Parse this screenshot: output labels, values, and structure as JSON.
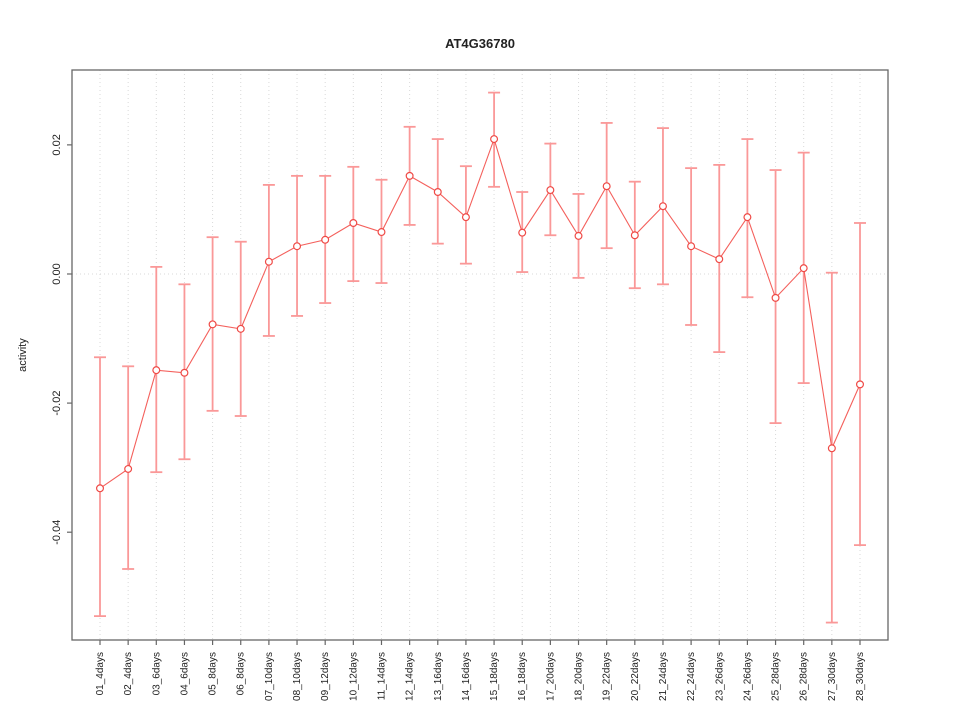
{
  "figure": {
    "background": "#ffffff"
  },
  "chart_data": {
    "type": "line",
    "subtype": "points-with-error-bars",
    "title": "AT4G36780",
    "xlabel": "",
    "ylabel": "activity",
    "legend": "none",
    "grid": {
      "vertical_dotted_per_category": true,
      "horizontal_dotted_at": 0
    },
    "marker": "open-circle",
    "categories": [
      "01_4days",
      "02_4days",
      "03_6days",
      "04_6days",
      "05_8days",
      "06_8days",
      "07_10days",
      "08_10days",
      "09_12days",
      "10_12days",
      "11_14days",
      "12_14days",
      "13_16days",
      "14_16days",
      "15_18days",
      "16_18days",
      "17_20days",
      "18_20days",
      "19_22days",
      "20_22days",
      "21_24days",
      "22_24days",
      "23_26days",
      "24_26days",
      "25_28days",
      "26_28days",
      "27_30days",
      "28_30days"
    ],
    "series": [
      {
        "name": "activity",
        "values": [
          -0.0332,
          -0.0302,
          -0.0149,
          -0.0153,
          -0.0078,
          -0.0085,
          0.0019,
          0.0043,
          0.0053,
          0.0079,
          0.0065,
          0.0152,
          0.0127,
          0.0088,
          0.0209,
          0.0064,
          0.013,
          0.0059,
          0.0136,
          0.006,
          0.0105,
          0.0043,
          0.0023,
          0.0088,
          -0.0037,
          0.0009,
          -0.027,
          -0.0171
        ],
        "error_low": [
          -0.053,
          -0.0457,
          -0.0307,
          -0.0287,
          -0.0212,
          -0.022,
          -0.0096,
          -0.0065,
          -0.0045,
          -0.0011,
          -0.0014,
          0.0076,
          0.0047,
          0.0016,
          0.0135,
          0.0003,
          0.006,
          -0.0006,
          0.004,
          -0.0022,
          -0.0016,
          -0.0079,
          -0.0121,
          -0.0036,
          -0.0231,
          -0.0169,
          -0.054,
          -0.042
        ],
        "error_high": [
          -0.0129,
          -0.0143,
          0.0011,
          -0.0016,
          0.0057,
          0.005,
          0.0138,
          0.0152,
          0.0152,
          0.0166,
          0.0146,
          0.0228,
          0.0209,
          0.0167,
          0.0281,
          0.0127,
          0.0202,
          0.0124,
          0.0234,
          0.0143,
          0.0226,
          0.0164,
          0.0169,
          0.0209,
          0.0161,
          0.0188,
          0.0002,
          0.0079
        ]
      }
    ],
    "ylim": [
      -0.0567,
      0.0316
    ],
    "yticks": [
      0.02,
      0.0,
      -0.02,
      -0.04
    ],
    "ytick_labels": [
      "0.02",
      "0.00",
      "-0.02",
      "-0.04"
    ],
    "colors": {
      "error_bars": "#fa9898",
      "line": "#f4605c",
      "marker_stroke": "#ef4a46",
      "marker_fill": "#ffffff",
      "grid": "#d9d9d9",
      "axis": "#666666",
      "text": "#222222"
    }
  }
}
